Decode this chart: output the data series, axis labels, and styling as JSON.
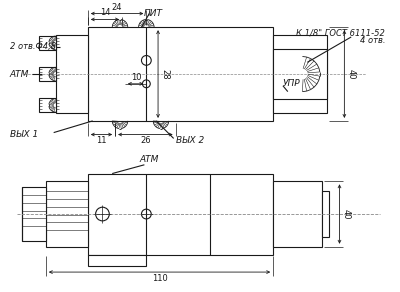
{
  "bg": "#ffffff",
  "lc": "#1a1a1a",
  "lw": 0.8,
  "fs": 6.0,
  "fs_lbl": 6.5,
  "labels": {
    "pit": "ПИТ",
    "atm": "АТМ",
    "vykh1": "ВЫХ 1",
    "vykh2": "ВЫХ 2",
    "upr": "УПР",
    "gost1": "К 1/8\" ГОСТ 6111-52",
    "gost2": "4 отв.",
    "otvd": "2 отв.Ф4,8",
    "d24": "24",
    "d14": "14",
    "d28": "28",
    "d10": "10",
    "d11": "11",
    "d26": "26",
    "d40": "40",
    "d110": "110"
  }
}
